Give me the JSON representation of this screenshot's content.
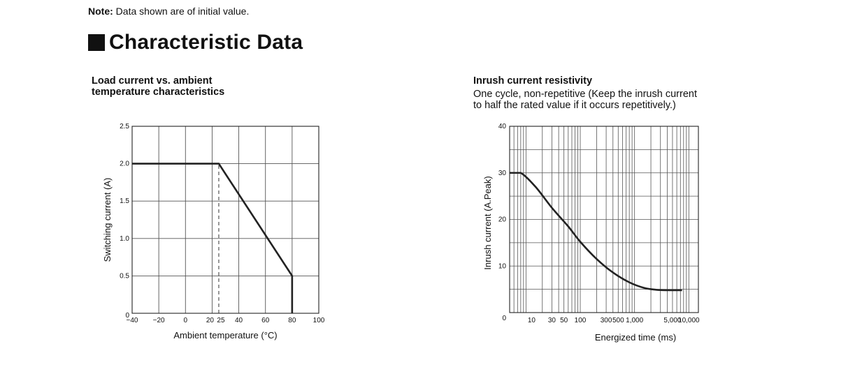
{
  "note": {
    "label": "Note:",
    "text": "Data shown are of initial value."
  },
  "section_title": "Characteristic Data",
  "chart_data": [
    {
      "type": "line",
      "title_line1": "Load current vs. ambient",
      "title_line2": "temperature characteristics",
      "xlabel": "Ambient temperature (°C)",
      "ylabel": "Switching current  (A)",
      "xlim": [
        -40,
        100
      ],
      "ylim": [
        0,
        2.5
      ],
      "grid": true,
      "x_ticks": [
        -40,
        -20,
        0,
        20,
        25,
        40,
        60,
        80,
        100
      ],
      "x_tick_labels": [
        "−40",
        "−20",
        "0",
        "20",
        "25",
        "40",
        "60",
        "80",
        "100"
      ],
      "y_ticks": [
        0,
        0.5,
        1.0,
        1.5,
        2.0,
        2.5
      ],
      "y_tick_labels": [
        "0",
        "0.5",
        "1.0",
        "1.5",
        "2.0",
        "2.5"
      ],
      "series": [
        {
          "x": [
            -40,
            25,
            80,
            80
          ],
          "y": [
            2.0,
            2.0,
            0.5,
            0
          ]
        }
      ],
      "reference_line": {
        "x": 25,
        "y_from": 0,
        "y_to": 2.0,
        "style": "dashed"
      }
    },
    {
      "type": "line",
      "x_scale": "log",
      "title": "Inrush current resistivity",
      "subtitle_line1": "One cycle, non-repetitive (Keep the inrush current",
      "subtitle_line2": "to half the rated value if it occurs repetitively.)",
      "xlabel": "Energized time (ms)",
      "ylabel": "Inrush current  (A.Peak)",
      "xlim": [
        5,
        15000
      ],
      "ylim": [
        0,
        40
      ],
      "grid": true,
      "x_ticks": [
        10,
        30,
        50,
        100,
        300,
        500,
        1000,
        5000,
        10000
      ],
      "x_tick_labels": [
        "10",
        "30",
        "50",
        "100",
        "300",
        "500",
        "1,000",
        "5,000",
        "10,000"
      ],
      "y_ticks": [
        0,
        10,
        20,
        30,
        40
      ],
      "y_tick_labels": [
        "0",
        "10",
        "20",
        "30",
        "40"
      ],
      "series": [
        {
          "x": [
            5,
            8,
            15,
            30,
            60,
            100,
            200,
            400,
            800,
            1500,
            2500,
            4000,
            7500
          ],
          "y": [
            30,
            30,
            27,
            22.5,
            18.5,
            15.2,
            11.5,
            8.6,
            6.5,
            5.3,
            4.9,
            4.8,
            4.8
          ]
        }
      ]
    }
  ]
}
